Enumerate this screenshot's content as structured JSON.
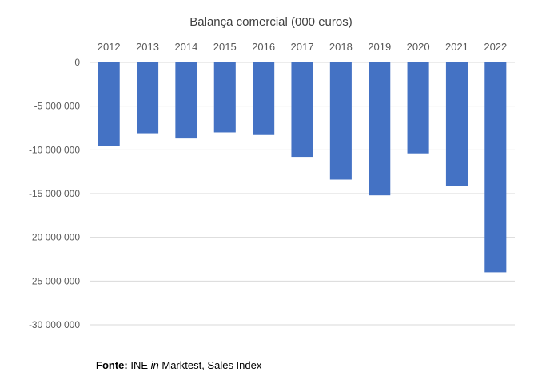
{
  "chart_data": {
    "type": "bar",
    "title": "Balança comercial (000 euros)",
    "categories": [
      "2012",
      "2013",
      "2014",
      "2015",
      "2016",
      "2017",
      "2018",
      "2019",
      "2020",
      "2021",
      "2022"
    ],
    "values": [
      -9600000,
      -8100000,
      -8700000,
      -8000000,
      -8300000,
      -10800000,
      -13400000,
      -15200000,
      -10400000,
      -14100000,
      -24000000
    ],
    "ylim": [
      -30000000,
      0
    ],
    "yticks": [
      0,
      -5000000,
      -10000000,
      -15000000,
      -20000000,
      -25000000,
      -30000000
    ],
    "ytick_labels": [
      "0",
      "-5 000 000",
      "-10 000 000",
      "-15 000 000",
      "-20 000 000",
      "-25 000 000",
      "-30 000 000"
    ],
    "xlabel": "",
    "ylabel": "",
    "grid": true,
    "legend": "none",
    "series_color": "#4472C4",
    "grid_color": "#D9D9D9",
    "text_color": "#595959"
  },
  "footer": {
    "source_label": "Fonte:",
    "source_prefix": " INE ",
    "source_in": "in",
    "source_suffix": " Marktest, Sales Index"
  }
}
